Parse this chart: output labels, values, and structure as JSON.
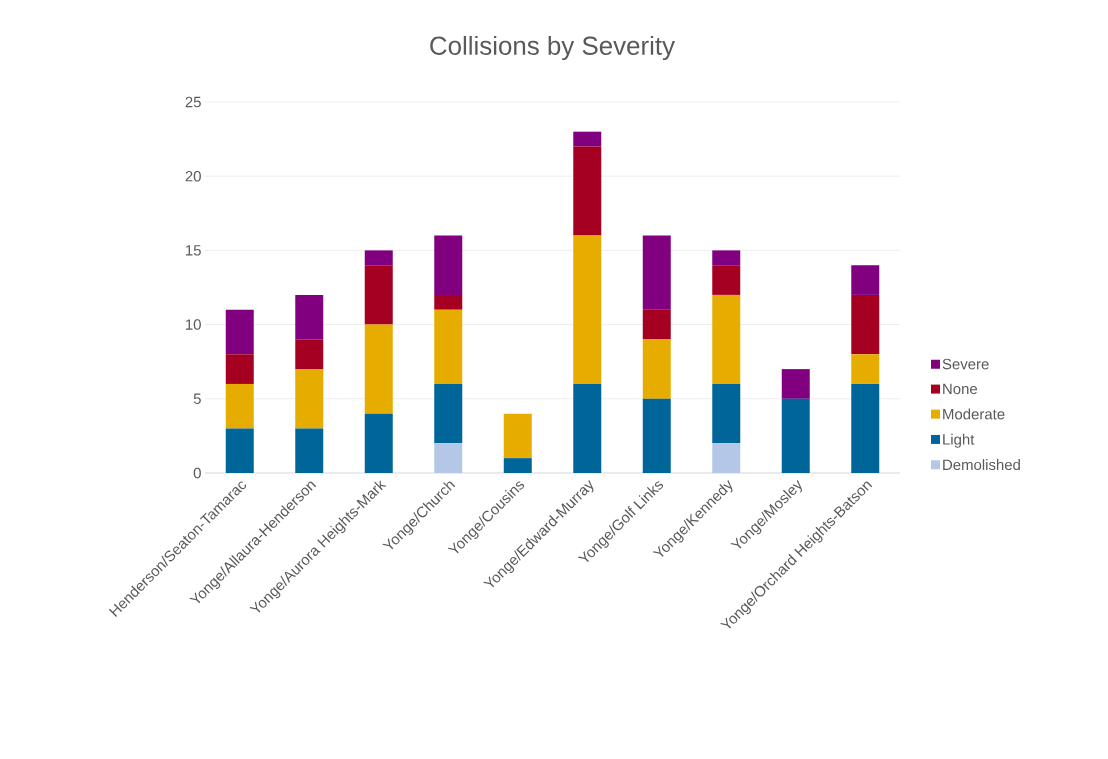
{
  "chart_data": {
    "type": "bar",
    "title": "Collisions by Severity",
    "categories": [
      "Henderson/Seaton-Tamarac",
      "Yonge/Allaura-Henderson",
      "Yonge/Aurora Heights-Mark",
      "Yonge/Church",
      "Yonge/Cousins",
      "Yonge/Edward-Murray",
      "Yonge/Golf Links",
      "Yonge/Kennedy",
      "Yonge/Mosley",
      "Yonge/Orchard Heights-Batson"
    ],
    "series": [
      {
        "name": "Demolished",
        "color": "#b4c7e7",
        "values": [
          0,
          0,
          0,
          2,
          0,
          0,
          0,
          2,
          0,
          0
        ]
      },
      {
        "name": "Light",
        "color": "#006699",
        "values": [
          3,
          3,
          4,
          4,
          1,
          6,
          5,
          4,
          5,
          6
        ]
      },
      {
        "name": "Moderate",
        "color": "#e6ac00",
        "values": [
          3,
          4,
          6,
          5,
          3,
          10,
          4,
          6,
          0,
          2
        ]
      },
      {
        "name": "None",
        "color": "#a50021",
        "values": [
          2,
          2,
          4,
          1,
          0,
          6,
          2,
          2,
          0,
          4
        ]
      },
      {
        "name": "Severe",
        "color": "#800080",
        "values": [
          3,
          3,
          1,
          4,
          0,
          1,
          5,
          1,
          2,
          2
        ]
      }
    ],
    "stacked": true,
    "ylim": [
      0,
      25
    ],
    "yticks": [
      0,
      5,
      10,
      15,
      20,
      25
    ],
    "grid": "y",
    "legend": "right"
  }
}
